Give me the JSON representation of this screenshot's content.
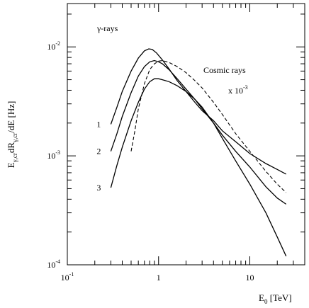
{
  "chart_data": {
    "type": "line",
    "title": "",
    "xlabel": "E_0 [TeV]",
    "ylabel": "E_γ,cr dR_γ,cr/dE [Hz]",
    "xscale": "log",
    "yscale": "log",
    "xlim": [
      0.1,
      40
    ],
    "ylim": [
      0.0001,
      0.025
    ],
    "grid": false,
    "x_ticks": [
      {
        "value": 0.1,
        "base": "10",
        "exp": "-1"
      },
      {
        "value": 1,
        "base": "1",
        "exp": ""
      },
      {
        "value": 10,
        "base": "10",
        "exp": ""
      }
    ],
    "y_ticks": [
      {
        "value": 0.0001,
        "base": "10",
        "exp": "-4"
      },
      {
        "value": 0.001,
        "base": "10",
        "exp": "-3"
      },
      {
        "value": 0.01,
        "base": "10",
        "exp": "-2"
      }
    ],
    "series": [
      {
        "label": "1",
        "style": "solid",
        "x": [
          0.3,
          0.35,
          0.4,
          0.5,
          0.6,
          0.7,
          0.78,
          0.85,
          0.95,
          1.1,
          1.3,
          1.6,
          2,
          2.5,
          3,
          4,
          5,
          7,
          10,
          15,
          20,
          25
        ],
        "y": [
          0.00195,
          0.0028,
          0.0039,
          0.006,
          0.0079,
          0.0092,
          0.0096,
          0.0095,
          0.0088,
          0.0076,
          0.0063,
          0.0049,
          0.0039,
          0.0031,
          0.0026,
          0.0021,
          0.0017,
          0.00135,
          0.00105,
          0.00085,
          0.00075,
          0.00068
        ]
      },
      {
        "label": "2",
        "style": "solid",
        "x": [
          0.3,
          0.35,
          0.4,
          0.5,
          0.6,
          0.7,
          0.8,
          0.9,
          1,
          1.1,
          1.3,
          1.6,
          2,
          2.5,
          3,
          4,
          5,
          7,
          10,
          15,
          20,
          25
        ],
        "y": [
          0.0011,
          0.0016,
          0.0023,
          0.0038,
          0.0054,
          0.0066,
          0.0073,
          0.0075,
          0.0073,
          0.007,
          0.0062,
          0.0051,
          0.0041,
          0.0033,
          0.0027,
          0.002,
          0.00155,
          0.0011,
          0.00079,
          0.00052,
          0.00041,
          0.00036
        ]
      },
      {
        "label": "3",
        "style": "solid",
        "x": [
          0.3,
          0.35,
          0.4,
          0.5,
          0.6,
          0.7,
          0.8,
          0.9,
          1,
          1.1,
          1.3,
          1.6,
          2,
          2.5,
          3,
          4,
          5,
          7,
          10,
          15,
          20,
          25
        ],
        "y": [
          0.00051,
          0.00082,
          0.0012,
          0.0021,
          0.0031,
          0.0041,
          0.0048,
          0.0051,
          0.0051,
          0.005,
          0.0048,
          0.0044,
          0.0039,
          0.0033,
          0.0028,
          0.002,
          0.00145,
          0.0009,
          0.00055,
          0.0003,
          0.00018,
          0.00012
        ]
      },
      {
        "label": "Cosmic rays x 10^-3",
        "style": "dashed",
        "x": [
          0.5,
          0.55,
          0.6,
          0.7,
          0.8,
          0.9,
          1,
          1.1,
          1.3,
          1.6,
          2,
          2.5,
          3,
          4,
          5,
          7,
          10,
          15,
          20,
          25
        ],
        "y": [
          0.0011,
          0.0017,
          0.0027,
          0.0046,
          0.0062,
          0.007,
          0.0074,
          0.0075,
          0.0072,
          0.0066,
          0.0058,
          0.0049,
          0.0042,
          0.0031,
          0.0024,
          0.0016,
          0.0011,
          0.00072,
          0.00055,
          0.00046
        ]
      }
    ],
    "annotations": {
      "gamma_rays": "γ-rays",
      "cosmic_rays": "Cosmic rays",
      "scale_prefix": "x 10",
      "scale_exp": "-3"
    },
    "axis_text": {
      "x_main": "E",
      "x_sub": "0",
      "x_unit": " [TeV]",
      "y_e": "E",
      "y_sub1": "γ,cr",
      "y_mid": "dR",
      "y_sub2": "γ,cr",
      "y_end": "/dE [Hz]"
    }
  }
}
